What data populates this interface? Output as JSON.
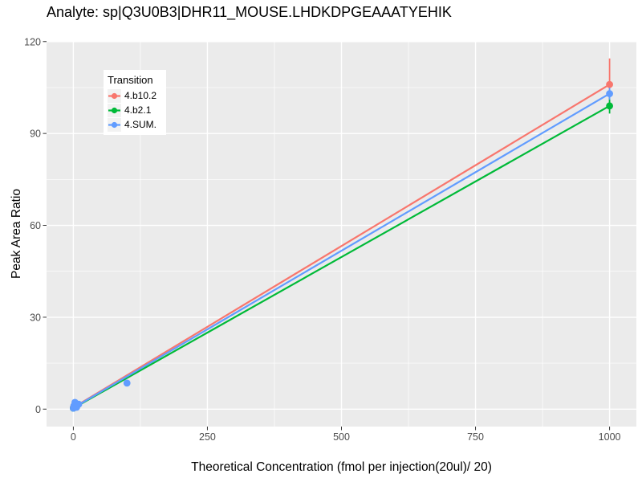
{
  "chart_data": {
    "type": "line",
    "title": "Analyte: sp|Q3U0B3|DHR11_MOUSE.LHDKDPGEAAATYEHIK",
    "xlabel": "Theoretical Concentration (fmol per injection(20ul)/ 20)",
    "ylabel": "Peak Area Ratio",
    "x_ticks": [
      0,
      250,
      500,
      750,
      1000
    ],
    "y_ticks": [
      0,
      30,
      60,
      90,
      120
    ],
    "x_minor_ticks": [
      125,
      375,
      625,
      875
    ],
    "y_minor_ticks": [
      15,
      45,
      75,
      105
    ],
    "xlim": [
      -50,
      1050
    ],
    "ylim": [
      -5.7,
      120.2
    ],
    "grid": true,
    "legend": {
      "title": "Transition",
      "position": "inside-top-left"
    },
    "series": [
      {
        "name": "4.b10.2",
        "color": "#F8766D",
        "line": {
          "x": [
            0,
            1000
          ],
          "y": [
            0.5,
            106
          ]
        },
        "points": [
          {
            "x": 0,
            "y": 0.5
          },
          {
            "x": 2,
            "y": 1.2
          },
          {
            "x": 1000,
            "y": 106,
            "ymin": 98,
            "ymax": 114.5
          }
        ]
      },
      {
        "name": "4.b2.1",
        "color": "#00BA38",
        "line": {
          "x": [
            0,
            1000
          ],
          "y": [
            0.3,
            99
          ]
        },
        "points": [
          {
            "x": 0,
            "y": 0.3
          },
          {
            "x": 2,
            "y": 0.8
          },
          {
            "x": 1000,
            "y": 99,
            "ymin": 96.5,
            "ymax": 101.8
          }
        ]
      },
      {
        "name": "4.SUM.",
        "color": "#619CFF",
        "line": {
          "x": [
            0,
            1000
          ],
          "y": [
            0.4,
            103
          ]
        },
        "points": [
          {
            "x": 0,
            "y": 0.3
          },
          {
            "x": 1,
            "y": 1.1
          },
          {
            "x": 3,
            "y": 2.2
          },
          {
            "x": 6,
            "y": 0.6
          },
          {
            "x": 10,
            "y": 1.6
          },
          {
            "x": 100,
            "y": 8.5
          },
          {
            "x": 1000,
            "y": 103,
            "ymin": 101,
            "ymax": 105.5
          }
        ]
      }
    ]
  },
  "colors": {
    "panel_bg": "#EBEBEB",
    "grid": "#FFFFFF",
    "tick_mark": "#333333",
    "tick_label": "#4D4D4D",
    "text": "#000000",
    "legend_bg": "#FFFFFF",
    "legend_key_bg": "#F2F2F2"
  }
}
